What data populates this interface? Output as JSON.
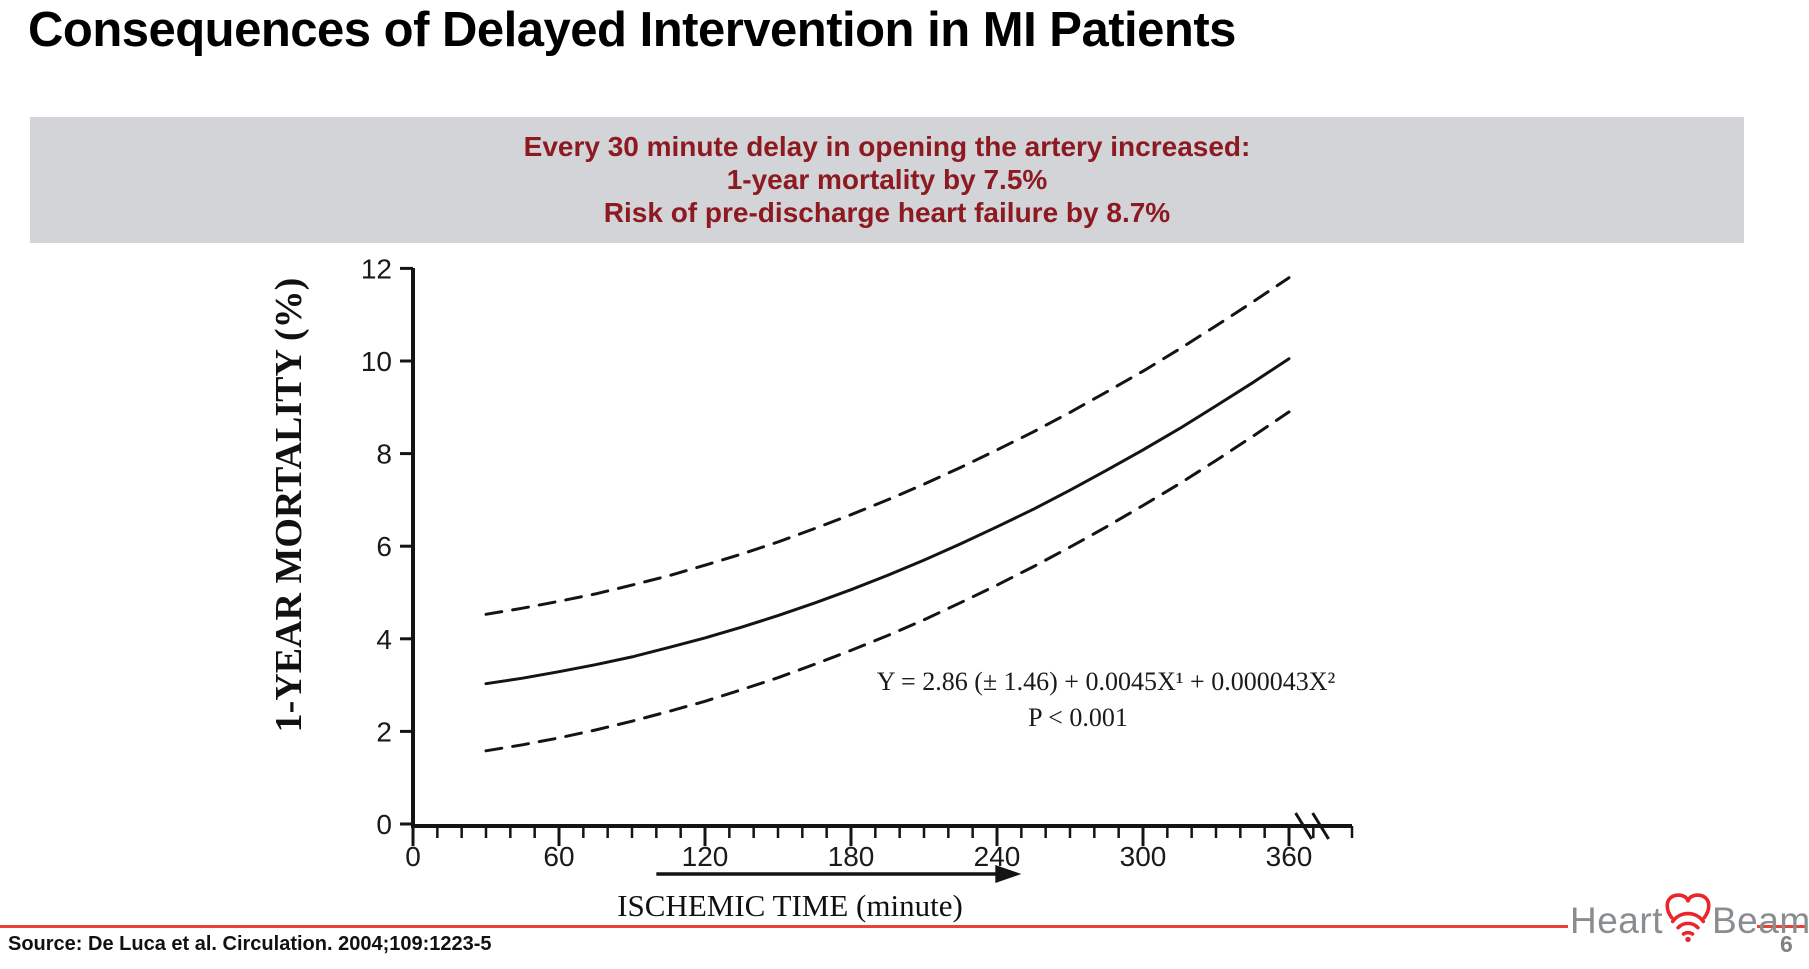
{
  "slide": {
    "title": "Consequences of Delayed Intervention in MI Patients",
    "page_number": "6",
    "source": "Source:  De Luca et al. Circulation. 2004;109:1223-5"
  },
  "banner": {
    "bg_color": "#D2D4D8",
    "text_color": "#8C1A20",
    "lines": [
      "Every 30 minute delay in opening the artery increased:",
      "1-year mortality by 7.5%",
      "Risk of pre-discharge heart failure by 8.7%"
    ]
  },
  "footer": {
    "rule_color": "#E8403A"
  },
  "logo": {
    "part1": "Heart",
    "part2": "Beam",
    "icon": "heart-wifi-icon",
    "text_color": "#8A8D90",
    "icon_color": "#E8262B",
    "page_number_color": "#7F8285"
  },
  "chart_data": {
    "type": "line",
    "title": "",
    "xlabel": "ISCHEMIC TIME (minute)",
    "ylabel": "1-YEAR MORTALITY (%)",
    "xlim": [
      0,
      390
    ],
    "ylim": [
      0,
      12
    ],
    "x_ticks": [
      0,
      60,
      120,
      180,
      240,
      300,
      360
    ],
    "y_ticks": [
      0,
      2,
      4,
      6,
      8,
      10,
      12
    ],
    "x_minor_tick_interval_min": 10,
    "axis_break_after_x": 360,
    "grid": "off",
    "legend": "none",
    "line_color": "#141414",
    "annotation_equation": "Y = 2.86 (± 1.46) + 0.0045X¹ + 0.000043X²",
    "annotation_p": "P < 0.001",
    "x_range_arrow": {
      "from_min": 100,
      "to_min": 250
    },
    "x": [
      30,
      45,
      60,
      75,
      90,
      105,
      120,
      135,
      150,
      165,
      180,
      195,
      210,
      225,
      240,
      255,
      270,
      285,
      300,
      315,
      330,
      345,
      360
    ],
    "series": [
      {
        "name": "mean-mortality",
        "style": "solid",
        "values": [
          3.03,
          3.15,
          3.29,
          3.44,
          3.61,
          3.81,
          4.02,
          4.25,
          4.5,
          4.77,
          5.06,
          5.37,
          5.7,
          6.05,
          6.42,
          6.8,
          7.21,
          7.64,
          8.08,
          8.54,
          9.03,
          9.53,
          10.05
        ]
      },
      {
        "name": "upper-95ci",
        "style": "dashed",
        "values": [
          4.53,
          4.66,
          4.81,
          4.97,
          5.16,
          5.36,
          5.59,
          5.83,
          6.09,
          6.38,
          6.68,
          7.0,
          7.34,
          7.7,
          8.08,
          8.47,
          8.89,
          9.33,
          9.78,
          10.26,
          10.76,
          11.27,
          11.8
        ]
      },
      {
        "name": "lower-95ci",
        "style": "dashed",
        "values": [
          1.58,
          1.71,
          1.86,
          2.03,
          2.22,
          2.43,
          2.65,
          2.9,
          3.16,
          3.45,
          3.75,
          4.07,
          4.41,
          4.78,
          5.16,
          5.56,
          5.98,
          6.42,
          6.88,
          7.35,
          7.85,
          8.37,
          8.9
        ]
      }
    ]
  }
}
